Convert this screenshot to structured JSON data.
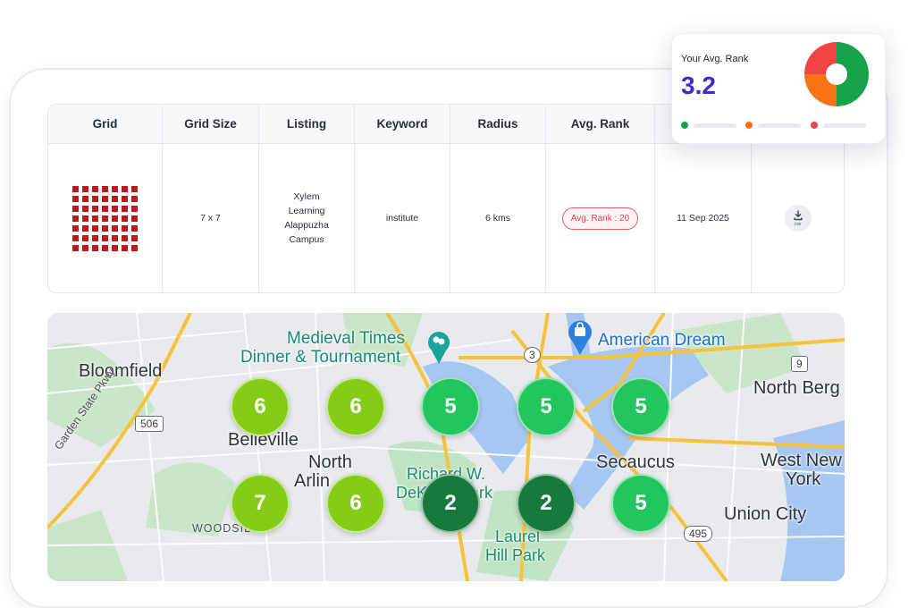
{
  "table": {
    "headers": [
      "Grid",
      "Grid Size",
      "Listing",
      "Keyword",
      "Radius",
      "Avg. Rank"
    ],
    "row": {
      "grid_size": "7 x 7",
      "listing": "Xylem Learning Alappuzha Campus",
      "keyword": "institute",
      "radius": "6 kms",
      "avg_rank_badge": "Avg. Rank : 20",
      "date": "11 Sep 2025",
      "download_icon": "download-csv-icon",
      "download_label": "csv"
    }
  },
  "summary_card": {
    "title": "Your Avg. Rank",
    "value": "3.2",
    "donut": [
      {
        "color": "#16a34a",
        "share": 0.5
      },
      {
        "color": "#f97316",
        "share": 0.25
      },
      {
        "color": "#ef4444",
        "share": 0.25
      }
    ],
    "legend_colors": [
      "#16a34a",
      "#f97316",
      "#ef4444"
    ]
  },
  "map": {
    "labels": {
      "bloomfield": "Bloomfield",
      "medieval_1": "Medieval Times",
      "medieval_2": "Dinner & Tournament",
      "american_dream": "American Dream",
      "north_bergen": "North Berg",
      "belleville": "Belleville",
      "north_arlington_1": "North",
      "north_arlington_2": "Arlin",
      "richard_1": "Richard W.",
      "richard_2": "DeKorte Park",
      "secaucus": "Secaucus",
      "west_new_york_1": "West New",
      "west_new_york_2": "York",
      "union_city": "Union City",
      "laurel_1": "Laurel",
      "laurel_2": "Hill Park",
      "woodside": "WOODSIDE",
      "garden_state": "Garden State Pkwy"
    },
    "shields": {
      "r506": "506",
      "r3": "3",
      "r9": "9",
      "r495": "495"
    },
    "rank_pins": [
      [
        6,
        6,
        5,
        5,
        5
      ],
      [
        7,
        6,
        2,
        2,
        5
      ]
    ],
    "rank_colors": {
      "2": "#177a3c",
      "5": "#22c55e",
      "6": "#84cc16",
      "7": "#84cc16"
    }
  }
}
